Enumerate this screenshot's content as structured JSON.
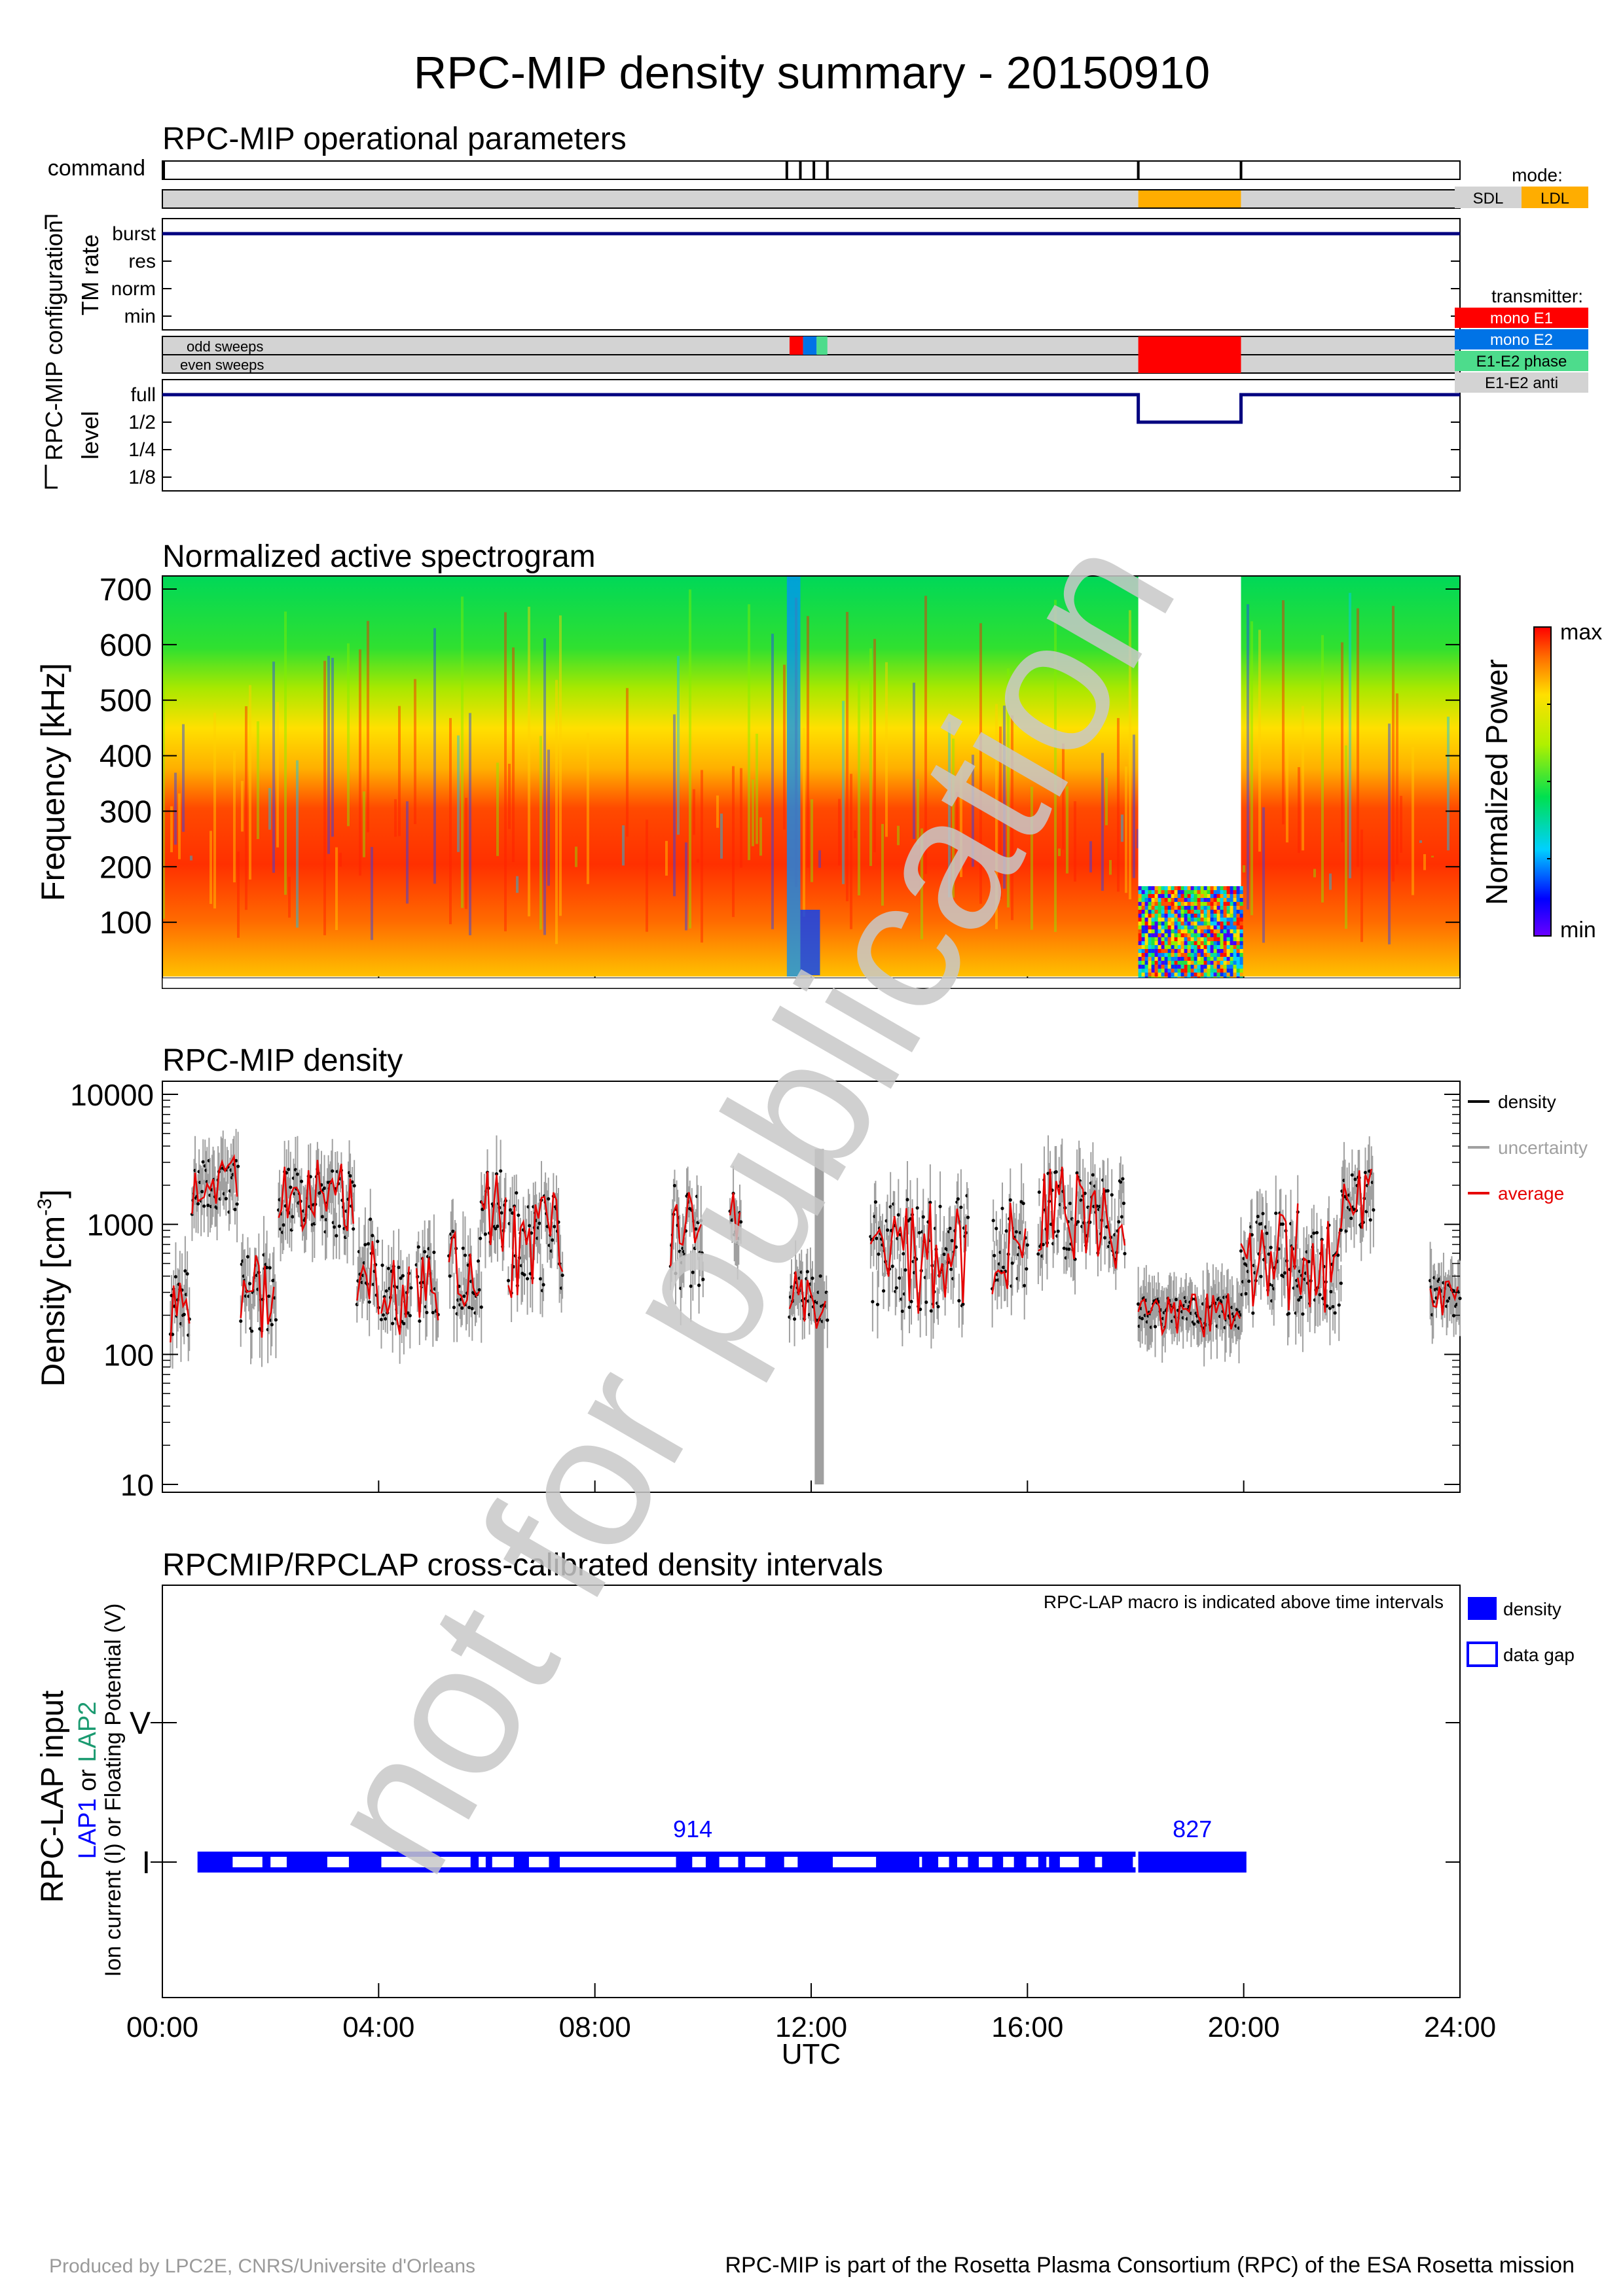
{
  "title": "RPC-MIP density summary - 20150910",
  "watermark": "not for publication",
  "footer": {
    "left": "Produced by LPC2E, CNRS/Universite d'Orleans",
    "right": "RPC-MIP is part of the Rosetta Plasma Consortium (RPC) of the ESA Rosetta mission"
  },
  "colors": {
    "navy": "#00007f",
    "sdl": "#d3d3d3",
    "ldl": "#ffad00",
    "mono_e1": "#ff0000",
    "mono_e2": "#0073e6",
    "e1e2_phase": "#4ddc8c",
    "e1e2_anti": "#d3d3d3",
    "density": "#000000",
    "uncertainty": "#a0a0a0",
    "average": "#e60000",
    "lap": "#0000ff",
    "lap2": "#1a9a70"
  },
  "x_axis": {
    "label": "UTC",
    "ticks": [
      "00:00",
      "04:00",
      "08:00",
      "12:00",
      "16:00",
      "20:00",
      "24:00"
    ],
    "range_hours": [
      0,
      24
    ]
  },
  "ops": {
    "title": "RPC-MIP operational parameters",
    "command_label": "command",
    "command_times_h": [
      11.55,
      11.8,
      12.05,
      12.3,
      18.05,
      19.95
    ],
    "group_label": "RPC-MIP configuration",
    "tm_rate_label": "TM rate",
    "tm_rate_levels": [
      "burst",
      "res",
      "norm",
      "min"
    ],
    "tm_rate_value": "burst",
    "mode_legend_title": "mode:",
    "mode_legend": [
      {
        "label": "SDL",
        "color": "#d3d3d3"
      },
      {
        "label": "LDL",
        "color": "#ffad00"
      }
    ],
    "mode_intervals": [
      {
        "start": 0,
        "end": 18.05,
        "mode": "SDL"
      },
      {
        "start": 18.05,
        "end": 19.95,
        "mode": "LDL"
      },
      {
        "start": 19.95,
        "end": 24,
        "mode": "SDL"
      }
    ],
    "sweep_labels": {
      "odd": "odd sweeps",
      "even": "even sweeps"
    },
    "transmitter_legend_title": "transmitter:",
    "transmitter_legend": [
      {
        "label": "mono E1",
        "color": "#ff0000"
      },
      {
        "label": "mono E2",
        "color": "#0073e6"
      },
      {
        "label": "E1-E2 phase",
        "color": "#4ddc8c"
      },
      {
        "label": "E1-E2 anti",
        "color": "#d3d3d3"
      }
    ],
    "transmitter_odd": [
      {
        "start": 11.6,
        "end": 11.85,
        "tx": "mono E1"
      },
      {
        "start": 11.85,
        "end": 12.1,
        "tx": "mono E2"
      },
      {
        "start": 12.1,
        "end": 12.3,
        "tx": "E1-E2 phase"
      },
      {
        "start": 18.05,
        "end": 19.95,
        "tx": "mono E1"
      }
    ],
    "transmitter_even": [
      {
        "start": 18.05,
        "end": 19.95,
        "tx": "mono E1"
      }
    ],
    "level_label": "level",
    "level_levels": [
      "full",
      "1/2",
      "1/4",
      "1/8"
    ],
    "level_series": [
      {
        "start": 0,
        "end": 18.05,
        "level": "full"
      },
      {
        "start": 18.05,
        "end": 19.95,
        "level": "1/2"
      },
      {
        "start": 19.95,
        "end": 24,
        "level": "full"
      }
    ]
  },
  "spectrogram": {
    "title": "Normalized active spectrogram",
    "ylabel": "Frequency [kHz]",
    "yticks": [
      "700",
      "600",
      "500",
      "400",
      "300",
      "200",
      "100"
    ],
    "ylim": [
      0,
      700
    ],
    "colorbar_label": "Normalized Power",
    "colorbar_max": "max",
    "colorbar_min": "min",
    "ldl_interval_h": [
      18.05,
      19.95
    ],
    "ldl_fmax_khz": 165,
    "blue_column_h": [
      11.55,
      11.8
    ]
  },
  "chart_data": {
    "type": "scatter",
    "title": "RPC-MIP density",
    "xlabel": "",
    "ylabel": "Density [cm",
    "ylabel_sup": "-3",
    "ylabel_end": "]",
    "yscale": "log",
    "ylim": [
      10,
      10000
    ],
    "xlim": [
      0,
      24
    ],
    "yticks": [
      "10000",
      "1000",
      "100",
      "10"
    ],
    "legend": [
      {
        "name": "density",
        "color": "#000000"
      },
      {
        "name": "uncertainty",
        "color": "#a0a0a0"
      },
      {
        "name": "average",
        "color": "#e60000"
      }
    ],
    "segments": [
      {
        "start": 0.15,
        "end": 0.5,
        "base": 250,
        "amp": 0.25
      },
      {
        "start": 0.55,
        "end": 1.4,
        "base": 1900,
        "amp": 0.22
      },
      {
        "start": 1.45,
        "end": 2.1,
        "base": 300,
        "amp": 0.3
      },
      {
        "start": 2.15,
        "end": 3.55,
        "base": 1500,
        "amp": 0.28
      },
      {
        "start": 3.6,
        "end": 4.0,
        "base": 500,
        "amp": 0.35
      },
      {
        "start": 4.05,
        "end": 4.6,
        "base": 280,
        "amp": 0.25
      },
      {
        "start": 4.7,
        "end": 5.1,
        "base": 350,
        "amp": 0.3
      },
      {
        "start": 5.3,
        "end": 5.9,
        "base": 400,
        "amp": 0.35
      },
      {
        "start": 5.9,
        "end": 6.35,
        "base": 1300,
        "amp": 0.3
      },
      {
        "start": 6.4,
        "end": 7.4,
        "base": 700,
        "amp": 0.4
      },
      {
        "start": 9.4,
        "end": 10.0,
        "base": 800,
        "amp": 0.4
      },
      {
        "start": 10.5,
        "end": 10.7,
        "base": 1100,
        "amp": 0.2
      },
      {
        "start": 11.6,
        "end": 12.3,
        "base": 280,
        "amp": 0.2
      },
      {
        "start": 13.1,
        "end": 14.9,
        "base": 600,
        "amp": 0.45
      },
      {
        "start": 15.35,
        "end": 16.0,
        "base": 700,
        "amp": 0.35
      },
      {
        "start": 16.2,
        "end": 17.8,
        "base": 1200,
        "amp": 0.35
      },
      {
        "start": 18.05,
        "end": 19.95,
        "base": 210,
        "amp": 0.12
      },
      {
        "start": 19.95,
        "end": 21.0,
        "base": 500,
        "amp": 0.4
      },
      {
        "start": 21.0,
        "end": 21.8,
        "base": 450,
        "amp": 0.35
      },
      {
        "start": 21.8,
        "end": 22.4,
        "base": 1500,
        "amp": 0.25
      },
      {
        "start": 23.45,
        "end": 24.0,
        "base": 280,
        "amp": 0.15
      }
    ],
    "uncertainty_bar": {
      "x": 12.15,
      "ymin": 10,
      "ymax": 3800
    }
  },
  "lap": {
    "title": "RPCMIP/RPCLAP cross-calibrated density intervals",
    "note": "RPC-LAP macro is indicated above time intervals",
    "ylabel_main": "RPC-LAP input",
    "ylabel_lap1": "LAP1",
    "ylabel_or1": " or ",
    "ylabel_lap2": "LAP2",
    "ylabel_sub": "Ion current (I) or Floating Potential (V)",
    "yticks": [
      "V",
      "I"
    ],
    "legend": [
      {
        "label": "density"
      },
      {
        "label": "data gap"
      }
    ],
    "macros": [
      {
        "label": "914",
        "start": 0.65,
        "end": 18.0
      },
      {
        "label": "827",
        "start": 18.05,
        "end": 20.05
      }
    ],
    "gaps": [
      [
        1.3,
        1.85
      ],
      [
        2.0,
        2.3
      ],
      [
        3.05,
        3.45
      ],
      [
        4.05,
        5.7
      ],
      [
        5.85,
        5.98
      ],
      [
        6.1,
        6.5
      ],
      [
        6.78,
        7.15
      ],
      [
        7.35,
        9.5
      ],
      [
        9.8,
        10.05
      ],
      [
        10.3,
        10.65
      ],
      [
        10.78,
        11.15
      ],
      [
        11.5,
        11.75
      ],
      [
        12.4,
        13.2
      ],
      [
        14.0,
        14.05
      ],
      [
        14.35,
        14.55
      ],
      [
        14.7,
        14.9
      ],
      [
        15.1,
        15.35
      ],
      [
        15.55,
        15.75
      ],
      [
        15.98,
        16.2
      ],
      [
        16.35,
        16.4
      ],
      [
        16.6,
        16.95
      ],
      [
        17.25,
        17.38
      ],
      [
        17.95,
        18.0
      ]
    ]
  }
}
